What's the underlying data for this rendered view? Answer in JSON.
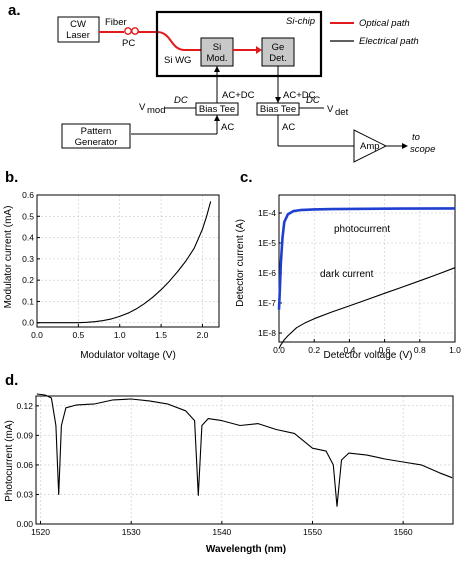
{
  "panels": {
    "a": "a.",
    "b": "b.",
    "c": "c.",
    "d": "d."
  },
  "diagram": {
    "laser": [
      "CW",
      "Laser"
    ],
    "fiber": "Fiber",
    "pc": "PC",
    "chip_label": "Si-chip",
    "si_wg": "Si WG",
    "modulator": [
      "Si",
      "Mod."
    ],
    "detector": [
      "Ge",
      "Det."
    ],
    "legend_optical": "Optical path",
    "legend_electrical": "Electrical path",
    "acdc_mod": "AC+DC",
    "acdc_det": "AC+DC",
    "vmod": "V",
    "vmod_sub": "mod",
    "vdet": "V",
    "vdet_sub": "det",
    "dc_left": "DC",
    "dc_right": "DC",
    "bias_tee_left": "Bias Tee",
    "bias_tee_right": "Bias Tee",
    "ac_left": "AC",
    "ac_right": "AC",
    "pattern_generator": [
      "Pattern",
      "Generator"
    ],
    "amp": "Amp",
    "to_scope": [
      "to",
      "scope"
    ],
    "colors": {
      "optical": "#e31a1c",
      "electrical": "#000000"
    }
  },
  "chart_data": [
    {
      "type": "line",
      "panel": "b",
      "xlabel": "Modulator voltage (V)",
      "ylabel": "Modulator current (mA)",
      "xlim": [
        0.0,
        2.2
      ],
      "ylim": [
        -0.02,
        0.6
      ],
      "xticks": [
        "0.0",
        "0.5",
        "1.0",
        "1.5",
        "2.0"
      ],
      "yticks": [
        "0.0",
        "0.1",
        "0.2",
        "0.3",
        "0.4",
        "0.5",
        "0.6"
      ],
      "grid": true,
      "series": [
        {
          "color": "#000000",
          "x": [
            0.0,
            0.3,
            0.5,
            0.6,
            0.7,
            0.8,
            0.9,
            1.0,
            1.1,
            1.2,
            1.3,
            1.4,
            1.5,
            1.6,
            1.7,
            1.8,
            1.9,
            2.0,
            2.05,
            2.1
          ],
          "y": [
            0.0,
            0.0,
            0.0,
            0.002,
            0.005,
            0.01,
            0.018,
            0.03,
            0.045,
            0.065,
            0.09,
            0.12,
            0.155,
            0.195,
            0.24,
            0.29,
            0.35,
            0.44,
            0.5,
            0.57
          ]
        }
      ]
    },
    {
      "type": "line",
      "panel": "c",
      "xlabel": "Detector voltage (V)",
      "ylabel": "Detector current (A)",
      "xlim": [
        0.0,
        1.0
      ],
      "ylim_log10": [
        -8.3,
        -3.4
      ],
      "yscale": "log",
      "xticks": [
        "0.0",
        "0.2",
        "0.4",
        "0.6",
        "0.8",
        "1.0"
      ],
      "yticks": [
        "1E-8",
        "1E-7",
        "1E-6",
        "1E-5",
        "1E-4"
      ],
      "grid": true,
      "series": [
        {
          "name": "photocurrent",
          "color": "#1f3fd0",
          "x": [
            0.0,
            0.005,
            0.01,
            0.02,
            0.03,
            0.05,
            0.08,
            0.12,
            0.2,
            0.3,
            0.5,
            0.7,
            1.0
          ],
          "y": [
            6e-08,
            3e-07,
            2e-06,
            1.5e-05,
            5e-05,
            9e-05,
            0.000115,
            0.000125,
            0.000132,
            0.000135,
            0.000138,
            0.00014,
            0.000142
          ]
        },
        {
          "name": "dark current",
          "color": "#000000",
          "x": [
            0.0,
            0.01,
            0.03,
            0.05,
            0.1,
            0.15,
            0.2,
            0.3,
            0.4,
            0.5,
            0.6,
            0.7,
            0.8,
            0.9,
            1.0
          ],
          "y": [
            3e-09,
            4e-09,
            6e-09,
            8e-09,
            1.5e-08,
            2.2e-08,
            3e-08,
            5e-08,
            8e-08,
            1.3e-07,
            2.1e-07,
            3.4e-07,
            5.5e-07,
            9e-07,
            1.5e-06
          ]
        }
      ]
    },
    {
      "type": "line",
      "panel": "d",
      "xlabel": "Wavelength (nm)",
      "ylabel": "Photocurrent (mA)",
      "xlim": [
        1519.5,
        1565.5
      ],
      "ylim": [
        0.0,
        0.13
      ],
      "xticks": [
        "1520",
        "1530",
        "1540",
        "1550",
        "1560"
      ],
      "yticks": [
        "0.00",
        "0.03",
        "0.06",
        "0.09",
        "0.12"
      ],
      "grid": true,
      "series": [
        {
          "color": "#000000",
          "x": [
            1519.6,
            1520.5,
            1521.2,
            1521.7,
            1522.0,
            1522.3,
            1522.8,
            1524,
            1526,
            1528,
            1530,
            1532,
            1534,
            1536,
            1537.0,
            1537.4,
            1537.8,
            1538.5,
            1540,
            1542,
            1544,
            1546,
            1548,
            1550,
            1551.5,
            1552.3,
            1552.7,
            1553.2,
            1554,
            1556,
            1558,
            1560,
            1562,
            1564,
            1565.4
          ],
          "y": [
            0.132,
            0.131,
            0.128,
            0.1,
            0.03,
            0.1,
            0.118,
            0.121,
            0.122,
            0.126,
            0.127,
            0.125,
            0.122,
            0.115,
            0.105,
            0.029,
            0.1,
            0.107,
            0.105,
            0.1,
            0.102,
            0.096,
            0.092,
            0.077,
            0.074,
            0.06,
            0.018,
            0.065,
            0.072,
            0.07,
            0.066,
            0.063,
            0.06,
            0.052,
            0.047
          ]
        }
      ]
    }
  ]
}
